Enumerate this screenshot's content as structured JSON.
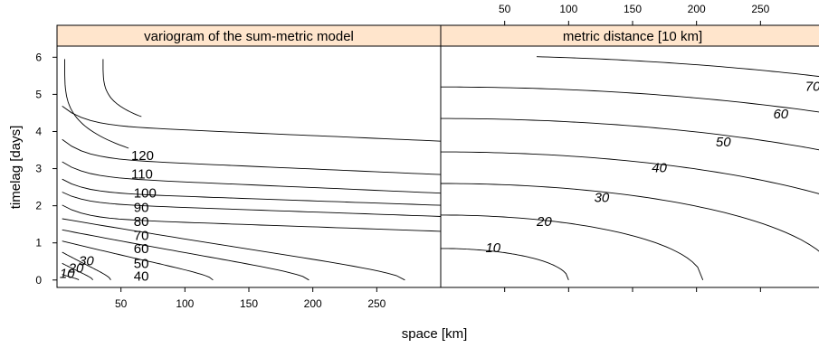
{
  "chart_data": {
    "type": "contour",
    "xlabel": "space [km]",
    "ylabel": "timelag [days]",
    "xticks": [
      50,
      100,
      150,
      200,
      250
    ],
    "yticks": [
      0,
      1,
      2,
      3,
      4,
      5,
      6
    ],
    "xlim": [
      0,
      300
    ],
    "ylim": [
      -0.2,
      6.3
    ],
    "panels": [
      {
        "title": "variogram of the sum-metric model",
        "levels": [
          {
            "label": "10",
            "x_end": 17,
            "y_top": 0.15,
            "y_flat": 0.1
          },
          {
            "label": "20",
            "x_end": 28,
            "y_top": 0.45,
            "y_flat": 0.1
          },
          {
            "label": "30",
            "x_end": 42,
            "y_top": 0.75,
            "y_flat": 0.1
          },
          {
            "label": "40",
            "x_end": 122,
            "y_top": 1.05,
            "y_flat": 0.4
          },
          {
            "label": "50",
            "x_end": 197,
            "y_top": 1.35,
            "y_flat": 0.8
          },
          {
            "label": "60",
            "x_end": 272,
            "y_top": 1.65,
            "y_flat": 1.15
          },
          {
            "label": "70",
            "x_end": 300,
            "y_top": 1.95,
            "y_flat": 1.6
          },
          {
            "label": "80",
            "x_end": 300,
            "y_top": 2.3,
            "y_flat": 2.0
          },
          {
            "label": "90",
            "x_end": 300,
            "y_top": 2.65,
            "y_flat": 2.3
          },
          {
            "label": "100",
            "x_end": 300,
            "y_top": 3.1,
            "y_flat": 2.7
          },
          {
            "label": "110",
            "x_end": 300,
            "y_top": 3.7,
            "y_flat": 3.2
          },
          {
            "label": "120",
            "x_end": 300,
            "y_top": 4.6,
            "y_flat": 4.1
          }
        ]
      },
      {
        "title": "metric distance [10 km]",
        "levels": [
          {
            "label": "10",
            "y0": 0.85
          },
          {
            "label": "20",
            "y0": 1.75
          },
          {
            "label": "30",
            "y0": 2.6
          },
          {
            "label": "40",
            "y0": 3.45
          },
          {
            "label": "50",
            "y0": 4.35
          },
          {
            "label": "60",
            "y0": 5.2
          },
          {
            "label": "70",
            "y0": 6.05
          }
        ]
      }
    ]
  }
}
